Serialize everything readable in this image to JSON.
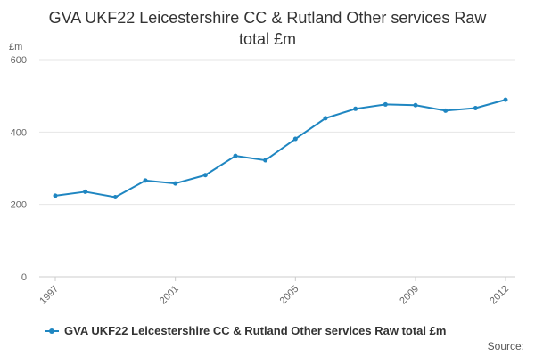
{
  "chart_data": {
    "type": "line",
    "title_lines": [
      "GVA UKF22 Leicestershire CC & Rutland Other services Raw",
      "total £m"
    ],
    "ylabel": "£m",
    "xlabel": "",
    "ylim": [
      0,
      600
    ],
    "yticks": [
      0,
      200,
      400,
      600
    ],
    "x": [
      1997,
      1998,
      1999,
      2000,
      2001,
      2002,
      2003,
      2004,
      2005,
      2006,
      2007,
      2008,
      2009,
      2010,
      2011,
      2012
    ],
    "xticks": [
      1997,
      2001,
      2005,
      2009,
      2012
    ],
    "series": [
      {
        "name": "GVA UKF22 Leicestershire CC & Rutland Other services Raw total £m",
        "color": "#1f86c1",
        "values": [
          224,
          235,
          220,
          266,
          258,
          281,
          334,
          322,
          381,
          438,
          464,
          476,
          474,
          459,
          466,
          489
        ]
      }
    ],
    "grid": "horizontal",
    "legend_position": "bottom-left"
  },
  "footer": {
    "source": "Source:"
  }
}
